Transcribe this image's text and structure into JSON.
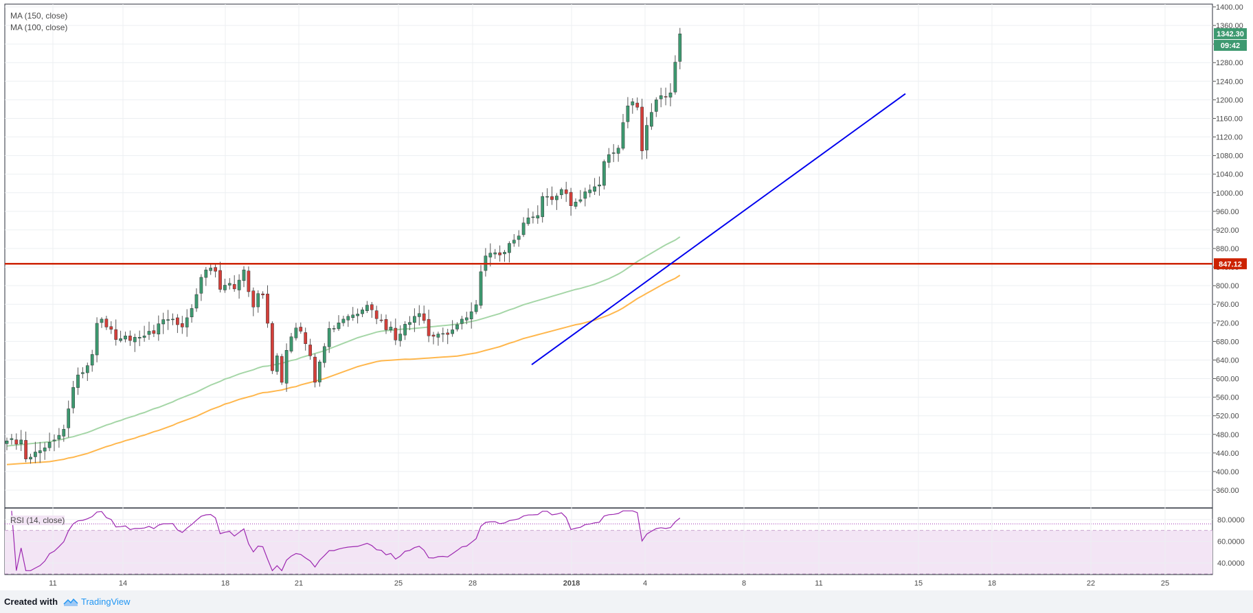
{
  "footer": {
    "created_with": "Created with",
    "brand": "TradingView"
  },
  "indicators": {
    "ma150": "MA (150, close)",
    "ma100": "MA (100, close)",
    "rsi": "RSI (14, close)"
  },
  "badges": {
    "last_price": "1342.30",
    "countdown": "09:42",
    "resistance": "847.12"
  },
  "colors": {
    "up": "#3d9970",
    "down": "#d43f3a",
    "ma150": "#a5d6a7",
    "ma100": "#ffb74d",
    "trendline": "#0000ee",
    "resistance": "#cc2200",
    "rsi_line": "#9c27b0",
    "rsi_band": "#f3e5f5"
  },
  "chart_data": {
    "type": "candlestick",
    "title": "",
    "price_axis": {
      "min": 360,
      "max": 1400,
      "ticks": [
        "1400.00",
        "1360.00",
        "1320.00",
        "1280.00",
        "1240.00",
        "1200.00",
        "1160.00",
        "1120.00",
        "1080.00",
        "1040.00",
        "1000.00",
        "960.00",
        "920.00",
        "880.00",
        "840.00",
        "800.00",
        "760.00",
        "720.00",
        "680.00",
        "640.00",
        "600.00",
        "560.00",
        "520.00",
        "480.00",
        "440.00",
        "400.00",
        "360.00"
      ]
    },
    "rsi_axis": {
      "min": 30,
      "max": 90,
      "ticks": [
        "80.0000",
        "60.0000",
        "40.0000"
      ],
      "upper_band": 70,
      "lower_band": 30
    },
    "x_labels": [
      "11",
      "14",
      "18",
      "21",
      "25",
      "28",
      "2018",
      "4",
      "8",
      "11",
      "15",
      "18",
      "22",
      "25"
    ],
    "closes": [
      466,
      471,
      459,
      468,
      427,
      431,
      442,
      445,
      451,
      463,
      468,
      478,
      491,
      535,
      581,
      608,
      613,
      628,
      652,
      719,
      728,
      711,
      706,
      684,
      686,
      692,
      682,
      689,
      689,
      692,
      702,
      697,
      718,
      727,
      727,
      728,
      716,
      711,
      731,
      751,
      781,
      818,
      834,
      838,
      831,
      792,
      801,
      805,
      793,
      812,
      834,
      787,
      754,
      783,
      780,
      719,
      617,
      649,
      592,
      661,
      690,
      709,
      702,
      675,
      649,
      592,
      636,
      669,
      708,
      708,
      720,
      728,
      734,
      737,
      739,
      748,
      758,
      748,
      729,
      726,
      705,
      711,
      683,
      696,
      717,
      721,
      734,
      740,
      725,
      692,
      691,
      696,
      697,
      695,
      705,
      716,
      728,
      731,
      744,
      759,
      830,
      864,
      870,
      871,
      866,
      872,
      891,
      898,
      907,
      935,
      946,
      948,
      951,
      992,
      992,
      985,
      993,
      1007,
      998,
      972,
      980,
      985,
      1002,
      1006,
      1013,
      1017,
      1067,
      1082,
      1086,
      1096,
      1151,
      1187,
      1196,
      1184,
      1090,
      1145,
      1173,
      1200,
      1209,
      1206,
      1215,
      1281,
      1342
    ],
    "ma150": [
      455,
      456,
      457,
      458,
      459,
      460,
      461,
      462,
      463,
      464,
      466,
      468,
      470,
      473,
      475,
      478,
      481,
      484,
      488,
      492,
      496,
      500,
      503,
      507,
      510,
      514,
      517,
      520,
      524,
      527,
      531,
      535,
      538,
      542,
      546,
      550,
      555,
      559,
      563,
      567,
      571,
      576,
      581,
      586,
      590,
      594,
      599,
      602,
      606,
      610,
      613,
      616,
      619,
      623,
      626,
      627,
      629,
      631,
      633,
      636,
      639,
      641,
      645,
      648,
      651,
      654,
      657,
      660,
      664,
      668,
      672,
      676,
      680,
      684,
      688,
      691,
      694,
      697,
      700,
      702,
      703,
      704,
      705,
      706,
      707,
      707,
      708,
      709,
      710,
      711,
      712,
      713,
      714,
      715,
      716,
      717,
      719,
      721,
      723,
      725,
      728,
      731,
      734,
      737,
      740,
      744,
      748,
      751,
      755,
      759,
      762,
      765,
      768,
      771,
      774,
      777,
      780,
      783,
      786,
      789,
      792,
      794,
      797,
      800,
      803,
      807,
      811,
      815,
      820,
      825,
      831,
      838,
      845,
      852,
      858,
      864,
      870,
      876,
      882,
      888,
      893,
      898,
      905
    ]
  }
}
